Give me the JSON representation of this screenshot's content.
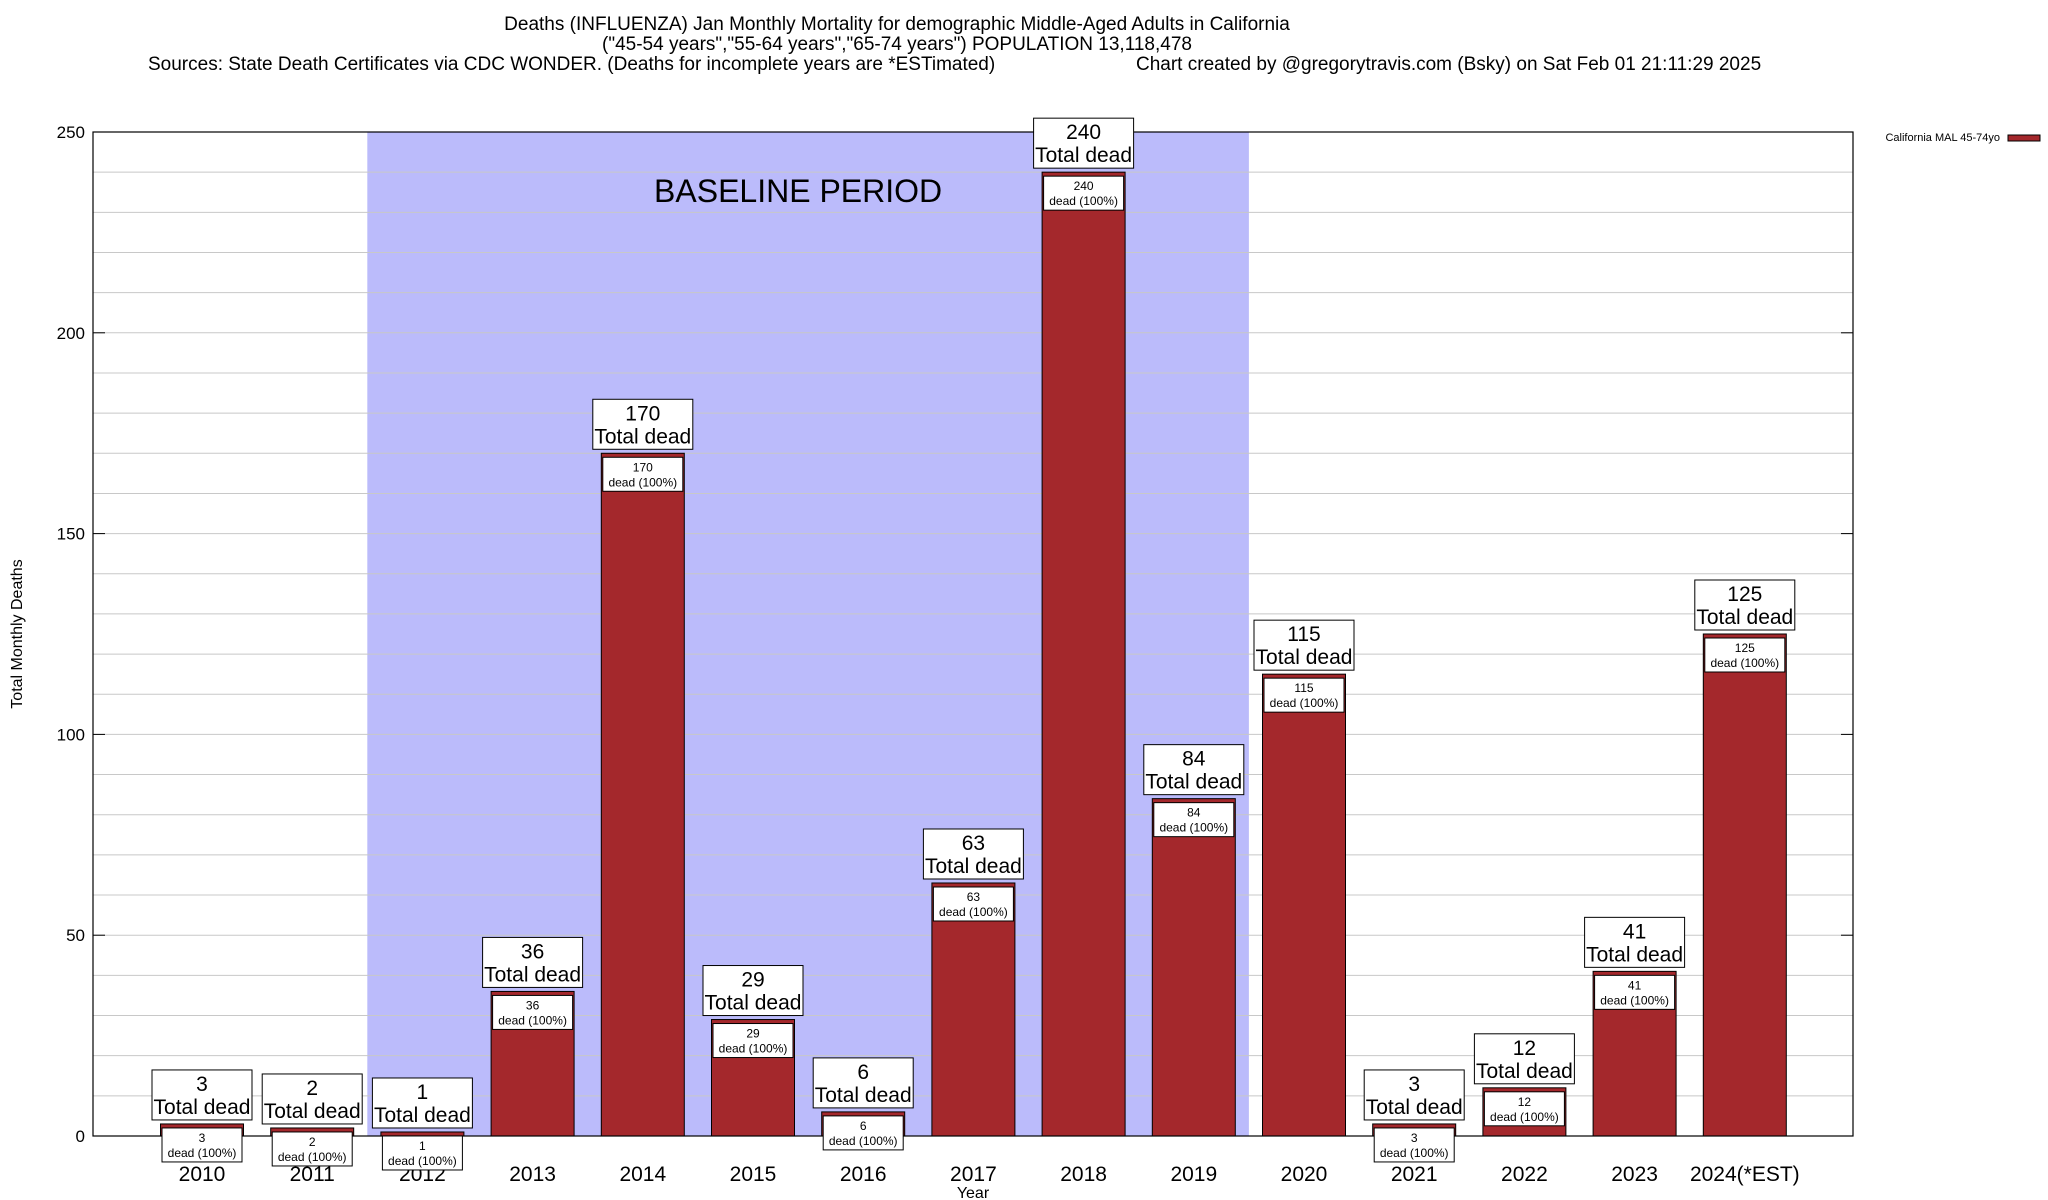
{
  "header": {
    "line1": "Deaths (INFLUENZA) Jan Monthly Mortality for demographic Middle-Aged Adults in California",
    "line2": "(\"45-54 years\",\"55-64 years\",\"65-74 years\") POPULATION 13,118,478",
    "line3a": "Sources: State Death Certificates via CDC WONDER. (Deaths for incomplete years are *ESTimated)",
    "line3b": "Chart created by @gregorytravis.com (Bsky) on Sat Feb 01 21:11:29 2025"
  },
  "colors": {
    "bar": "#a4282c",
    "baseline_shade": "#bbbbfb",
    "grid": "#c8c8c8"
  },
  "chart_data": {
    "type": "bar",
    "xlabel": "Year",
    "ylabel": "Total Monthly Deaths",
    "ylim": [
      0,
      250
    ],
    "yticks": [
      0,
      50,
      100,
      150,
      200,
      250
    ],
    "grid": true,
    "legend": {
      "position": "top-right",
      "label": "California MAL 45-74yo"
    },
    "categories": [
      "2010",
      "2011",
      "2012",
      "2013",
      "2014",
      "2015",
      "2016",
      "2017",
      "2018",
      "2019",
      "2020",
      "2021",
      "2022",
      "2023",
      "2024(*EST)"
    ],
    "series": [
      {
        "name": "California MAL 45-74yo",
        "values": [
          3,
          2,
          1,
          36,
          170,
          29,
          6,
          63,
          240,
          84,
          115,
          3,
          12,
          41,
          125
        ]
      }
    ],
    "total_label": "Total dead",
    "bar_label_suffix": "dead (100%)",
    "baseline": {
      "label": "BASELINE PERIOD",
      "from": "2012",
      "to": "2019"
    }
  }
}
